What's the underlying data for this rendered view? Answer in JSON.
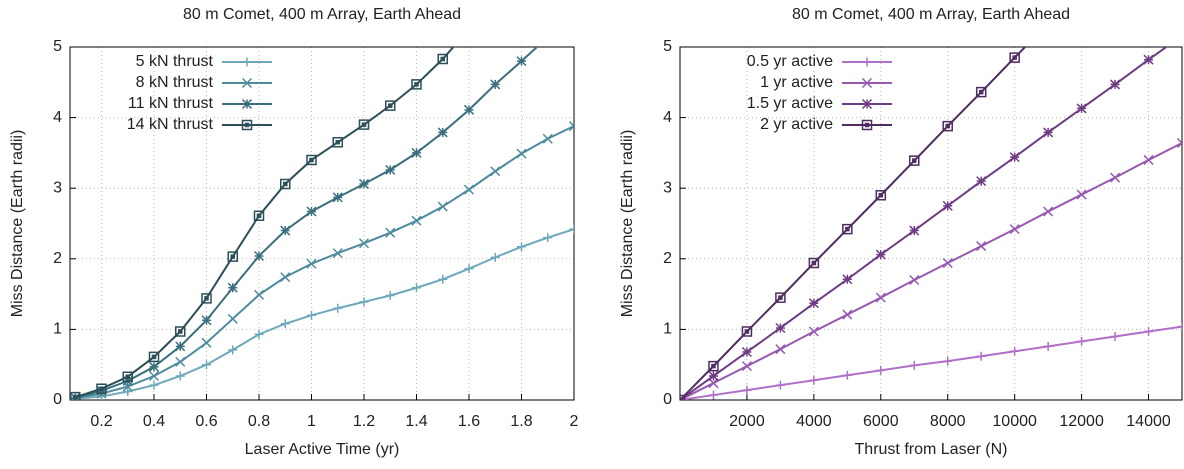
{
  "chart_data": [
    {
      "type": "line",
      "title": "80 m Comet, 400 m Array, Earth Ahead",
      "xlabel": "Laser Active Time (yr)",
      "ylabel": "Miss Distance (Earth radii)",
      "xlim": [
        0.08,
        2
      ],
      "ylim": [
        0,
        5
      ],
      "xticks": [
        0.2,
        0.4,
        0.6,
        0.8,
        1,
        1.2,
        1.4,
        1.6,
        1.8,
        2
      ],
      "yticks": [
        0,
        1,
        2,
        3,
        4,
        5
      ],
      "grid": true,
      "legend": "upper left",
      "x": [
        0.1,
        0.2,
        0.3,
        0.4,
        0.5,
        0.6,
        0.7,
        0.8,
        0.9,
        1.0,
        1.1,
        1.2,
        1.3,
        1.4,
        1.5,
        1.6,
        1.7,
        1.8,
        1.9,
        2.0
      ],
      "series": [
        {
          "name": "5 kN thrust",
          "color": "#6ea9bb",
          "marker": "plus",
          "values": [
            0.02,
            0.05,
            0.12,
            0.21,
            0.34,
            0.5,
            0.71,
            0.93,
            1.08,
            1.2,
            1.3,
            1.39,
            1.48,
            1.59,
            1.71,
            1.86,
            2.02,
            2.17,
            2.3,
            2.42
          ]
        },
        {
          "name": "8 kN thrust",
          "color": "#4d8c9d",
          "marker": "x",
          "values": [
            0.03,
            0.09,
            0.19,
            0.34,
            0.54,
            0.81,
            1.15,
            1.49,
            1.74,
            1.93,
            2.08,
            2.22,
            2.37,
            2.54,
            2.74,
            2.98,
            3.24,
            3.49,
            3.7,
            3.88
          ]
        },
        {
          "name": "11 kN thrust",
          "color": "#3a6f7d",
          "marker": "star",
          "values": [
            0.03,
            0.13,
            0.27,
            0.47,
            0.76,
            1.13,
            1.59,
            2.04,
            2.4,
            2.67,
            2.87,
            3.06,
            3.26,
            3.5,
            3.79,
            4.11,
            4.47,
            4.8,
            5.14,
            null
          ]
        },
        {
          "name": "14 kN thrust",
          "color": "#2c4f5a",
          "marker": "square",
          "values": [
            0.04,
            0.16,
            0.33,
            0.61,
            0.97,
            1.44,
            2.03,
            2.61,
            3.06,
            3.4,
            3.65,
            3.9,
            4.17,
            4.47,
            4.83,
            5.25,
            null,
            null,
            null,
            null
          ]
        }
      ]
    },
    {
      "type": "line",
      "title": "80 m Comet, 400 m Array, Earth Ahead",
      "xlabel": "Thrust from Laser (N)",
      "ylabel": "Miss Distance (Earth radii)",
      "xlim": [
        0,
        15000
      ],
      "ylim": [
        0,
        5
      ],
      "xticks": [
        2000,
        4000,
        6000,
        8000,
        10000,
        12000,
        14000
      ],
      "yticks": [
        0,
        1,
        2,
        3,
        4,
        5
      ],
      "grid": true,
      "legend": "upper left",
      "x": [
        0,
        1000,
        2000,
        3000,
        4000,
        5000,
        6000,
        7000,
        8000,
        9000,
        10000,
        11000,
        12000,
        13000,
        14000,
        15000
      ],
      "series": [
        {
          "name": "0.5 yr active",
          "color": "#b070c8",
          "marker": "plus",
          "values": [
            0,
            0.07,
            0.14,
            0.21,
            0.28,
            0.35,
            0.42,
            0.49,
            0.55,
            0.62,
            0.69,
            0.76,
            0.83,
            0.9,
            0.97,
            1.04
          ]
        },
        {
          "name": "1 yr active",
          "color": "#9658b0",
          "marker": "x",
          "values": [
            0,
            0.24,
            0.48,
            0.72,
            0.97,
            1.21,
            1.45,
            1.7,
            1.94,
            2.18,
            2.42,
            2.67,
            2.91,
            3.15,
            3.4,
            3.64
          ]
        },
        {
          "name": "1.5 yr active",
          "color": "#6d3c84",
          "marker": "star",
          "values": [
            0,
            0.34,
            0.68,
            1.02,
            1.37,
            1.71,
            2.06,
            2.4,
            2.75,
            3.1,
            3.44,
            3.79,
            4.13,
            4.47,
            4.82,
            5.16
          ]
        },
        {
          "name": "2 yr active",
          "color": "#4f2c60",
          "marker": "square",
          "values": [
            0,
            0.48,
            0.97,
            1.45,
            1.94,
            2.42,
            2.9,
            3.39,
            3.88,
            4.36,
            4.85,
            5.33,
            null,
            null,
            null,
            null
          ]
        }
      ]
    }
  ]
}
